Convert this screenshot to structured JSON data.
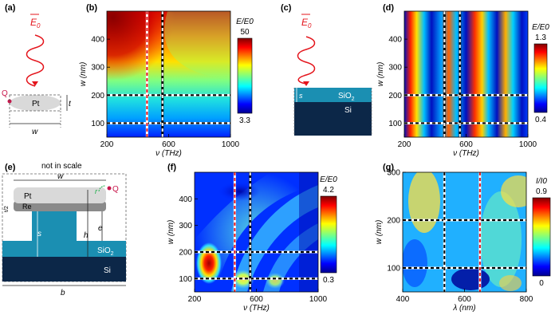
{
  "panel_labels": {
    "a": "(a)",
    "b": "(b)",
    "c": "(c)",
    "d": "(d)",
    "e": "(e)",
    "f": "(f)",
    "g": "(g)"
  },
  "panel_a": {
    "field": "E",
    "field_sub": "0",
    "material": "Pt",
    "point": "Q",
    "width": "w",
    "thickness": "t"
  },
  "panel_c": {
    "field": "E",
    "field_sub": "0",
    "film": "SiO",
    "film_sub": "2",
    "substrate": "Si",
    "spacer": "s"
  },
  "panel_e": {
    "note": "not in scale",
    "top_layer": "Pt",
    "adhesion": "Re",
    "point": "Q",
    "radius": "r",
    "width": "w",
    "spacer": "s",
    "height": "h",
    "pillar": "e",
    "film": "SiO",
    "film_sub": "2",
    "substrate": "Si",
    "base": "b",
    "vert_label": "t/2"
  },
  "colors": {
    "wave": "#e4141b",
    "Q": "#c8164b",
    "sio2": "#1b8fb2",
    "si": "#0c2748",
    "pt": "#d9d9d9",
    "re": "#8a8a8a"
  },
  "chart_data": [
    {
      "id": "b",
      "type": "heatmap",
      "ylabel": "w (nm)",
      "xlabel": "ν (THz)",
      "x_ticks": [
        200,
        600,
        1000
      ],
      "y_ticks": [
        100,
        200,
        300,
        400
      ],
      "xlim": [
        200,
        1000
      ],
      "ylim": [
        50,
        500
      ],
      "colorbar": {
        "label": "E/E0",
        "max": "50",
        "min": "3.3"
      },
      "dashed_lines": {
        "x": [
          460,
          560
        ],
        "y": [
          100,
          200
        ],
        "x_colors": [
          "red",
          "white"
        ]
      }
    },
    {
      "id": "d",
      "type": "heatmap",
      "ylabel": "w (nm)",
      "xlabel": "ν (THz)",
      "x_ticks": [
        200,
        600,
        1000
      ],
      "y_ticks": [
        100,
        200,
        300,
        400
      ],
      "xlim": [
        200,
        1000
      ],
      "ylim": [
        50,
        500
      ],
      "colorbar": {
        "label": "E/E0",
        "max": "1.3",
        "min": "0.4"
      },
      "dashed_lines": {
        "x": [
          460,
          560
        ],
        "y": [
          100,
          200
        ],
        "x_colors": [
          "white",
          "white"
        ]
      }
    },
    {
      "id": "f",
      "type": "heatmap",
      "ylabel": "w (nm)",
      "xlabel": "ν (THz)",
      "x_ticks": [
        200,
        600,
        1000
      ],
      "y_ticks": [
        100,
        200,
        300,
        400
      ],
      "xlim": [
        200,
        1000
      ],
      "ylim": [
        50,
        500
      ],
      "colorbar": {
        "label": "E/E0",
        "max": "4.2",
        "min": "0.3"
      },
      "dashed_lines": {
        "x": [
          460,
          560
        ],
        "y": [
          100,
          200
        ],
        "x_colors": [
          "red",
          "white"
        ]
      }
    },
    {
      "id": "g",
      "type": "heatmap",
      "ylabel": "w (nm)",
      "xlabel": "λ (nm)",
      "x_ticks": [
        400,
        600,
        800
      ],
      "y_ticks": [
        100,
        200,
        300
      ],
      "xlim": [
        400,
        800
      ],
      "ylim": [
        50,
        300
      ],
      "colorbar": {
        "label": "I/I0",
        "max": "0.9",
        "min": "0"
      },
      "dashed_lines": {
        "x": [
          535,
          650
        ],
        "y": [
          100,
          200
        ],
        "x_colors": [
          "black",
          "red"
        ]
      }
    }
  ]
}
